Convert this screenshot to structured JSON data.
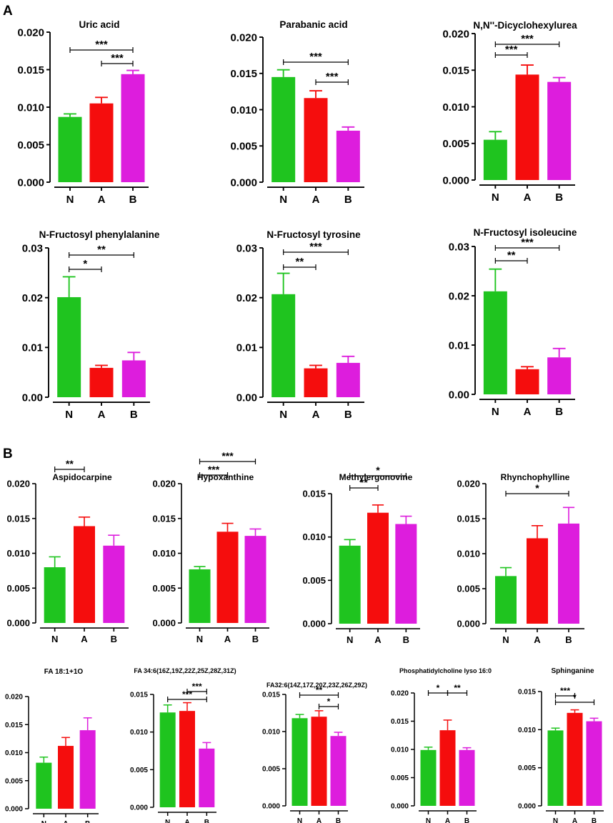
{
  "panels": [
    {
      "label": "A"
    },
    {
      "label": "B"
    }
  ],
  "colors": {
    "N": "#1fc41f",
    "A": "#f50d0d",
    "B": "#dd1ddd",
    "axis": "#000000"
  },
  "chart_data": [
    {
      "panel": "A",
      "type": "bar",
      "title": "Uric acid",
      "categories": [
        "N",
        "A",
        "B"
      ],
      "values": [
        0.0087,
        0.0105,
        0.0144
      ],
      "errors": [
        0.0004,
        0.0008,
        0.0005
      ],
      "ylim": [
        0,
        0.02
      ],
      "yticks": [
        "0.000",
        "0.005",
        "0.010",
        "0.015",
        "0.020"
      ],
      "significance": [
        {
          "from": "N",
          "to": "B",
          "label": "***"
        },
        {
          "from": "A",
          "to": "B",
          "label": "***"
        }
      ]
    },
    {
      "panel": "A",
      "type": "bar",
      "title": "Parabanic acid",
      "categories": [
        "N",
        "A",
        "B"
      ],
      "values": [
        0.0145,
        0.0116,
        0.0071
      ],
      "errors": [
        0.001,
        0.001,
        0.0005
      ],
      "ylim": [
        0,
        0.02
      ],
      "yticks": [
        "0.000",
        "0.005",
        "0.010",
        "0.015",
        "0.020"
      ],
      "significance": [
        {
          "from": "N",
          "to": "B",
          "label": "***"
        },
        {
          "from": "A",
          "to": "B",
          "label": "***"
        }
      ]
    },
    {
      "panel": "A",
      "type": "bar",
      "title": "N,N''-Dicyclohexylurea",
      "categories": [
        "N",
        "A",
        "B"
      ],
      "values": [
        0.0055,
        0.0144,
        0.0134
      ],
      "errors": [
        0.0011,
        0.0013,
        0.0006
      ],
      "ylim": [
        0,
        0.02
      ],
      "yticks": [
        "0.000",
        "0.005",
        "0.010",
        "0.015",
        "0.020"
      ],
      "significance": [
        {
          "from": "N",
          "to": "A",
          "label": "***"
        },
        {
          "from": "N",
          "to": "B",
          "label": "***"
        }
      ]
    },
    {
      "panel": "A",
      "type": "bar",
      "title": "N-Fructosyl phenylalanine",
      "categories": [
        "N",
        "A",
        "B"
      ],
      "values": [
        0.0201,
        0.0059,
        0.0074
      ],
      "errors": [
        0.0041,
        0.0005,
        0.0016
      ],
      "ylim": [
        0,
        0.03
      ],
      "yticks": [
        "0.00",
        "0.01",
        "0.02",
        "0.03"
      ],
      "significance": [
        {
          "from": "N",
          "to": "A",
          "label": "*"
        },
        {
          "from": "N",
          "to": "B",
          "label": "**"
        }
      ]
    },
    {
      "panel": "A",
      "type": "bar",
      "title": "N-Fructosyl tyrosine",
      "categories": [
        "N",
        "A",
        "B"
      ],
      "values": [
        0.0207,
        0.0058,
        0.0069
      ],
      "errors": [
        0.0042,
        0.0006,
        0.0013
      ],
      "ylim": [
        0,
        0.03
      ],
      "yticks": [
        "0.00",
        "0.01",
        "0.02",
        "0.03"
      ],
      "significance": [
        {
          "from": "N",
          "to": "A",
          "label": "**"
        },
        {
          "from": "N",
          "to": "B",
          "label": "***"
        }
      ]
    },
    {
      "panel": "A",
      "type": "bar",
      "title": "N-Fructosyl isoleucine",
      "categories": [
        "N",
        "A",
        "B"
      ],
      "values": [
        0.0209,
        0.0051,
        0.0075
      ],
      "errors": [
        0.0045,
        0.0005,
        0.0018
      ],
      "ylim": [
        0,
        0.03
      ],
      "yticks": [
        "0.00",
        "0.01",
        "0.02",
        "0.03"
      ],
      "significance": [
        {
          "from": "N",
          "to": "A",
          "label": "**"
        },
        {
          "from": "N",
          "to": "B",
          "label": "***"
        }
      ]
    },
    {
      "panel": "B",
      "type": "bar",
      "title": "Aspidocarpine",
      "categories": [
        "N",
        "A",
        "B"
      ],
      "values": [
        0.008,
        0.0139,
        0.0111
      ],
      "errors": [
        0.0015,
        0.0013,
        0.0015
      ],
      "ylim": [
        0,
        0.02
      ],
      "yticks": [
        "0.000",
        "0.005",
        "0.010",
        "0.015",
        "0.020"
      ],
      "significance": [
        {
          "from": "N",
          "to": "A",
          "label": "**"
        }
      ]
    },
    {
      "panel": "B",
      "type": "bar",
      "title": "Hypoxanthine",
      "categories": [
        "N",
        "A",
        "B"
      ],
      "values": [
        0.0077,
        0.0131,
        0.0125
      ],
      "errors": [
        0.0004,
        0.0012,
        0.001
      ],
      "ylim": [
        0,
        0.02
      ],
      "yticks": [
        "0.000",
        "0.005",
        "0.010",
        "0.015",
        "0.020"
      ],
      "significance": [
        {
          "from": "N",
          "to": "A",
          "label": "***"
        },
        {
          "from": "N",
          "to": "B",
          "label": "***"
        }
      ]
    },
    {
      "panel": "B",
      "type": "bar",
      "title": "Methylergonovine",
      "categories": [
        "N",
        "A",
        "B"
      ],
      "values": [
        0.009,
        0.0128,
        0.0115
      ],
      "errors": [
        0.0007,
        0.0009,
        0.0009
      ],
      "ylim": [
        0,
        0.015
      ],
      "yticks": [
        "0.000",
        "0.005",
        "0.010",
        "0.015"
      ],
      "significance": [
        {
          "from": "N",
          "to": "A",
          "label": "**"
        },
        {
          "from": "N",
          "to": "B",
          "label": "*"
        }
      ]
    },
    {
      "panel": "B",
      "type": "bar",
      "title": "Rhynchophylline",
      "categories": [
        "N",
        "A",
        "B"
      ],
      "values": [
        0.0068,
        0.0122,
        0.0143
      ],
      "errors": [
        0.0012,
        0.0018,
        0.0023
      ],
      "ylim": [
        0,
        0.02
      ],
      "yticks": [
        "0.000",
        "0.005",
        "0.010",
        "0.015",
        "0.020"
      ],
      "significance": [
        {
          "from": "N",
          "to": "B",
          "label": "*"
        }
      ]
    },
    {
      "panel": "B",
      "type": "bar",
      "title": "FA 18:1+1O",
      "categories": [
        "N",
        "A",
        "B"
      ],
      "values": [
        0.0082,
        0.0112,
        0.014
      ],
      "errors": [
        0.001,
        0.0015,
        0.0022
      ],
      "ylim": [
        0,
        0.02
      ],
      "yticks": [
        "0.000",
        "0.005",
        "0.010",
        "0.015",
        "0.020"
      ],
      "significance": []
    },
    {
      "panel": "B",
      "type": "bar",
      "title": "FA 34:6(16Z,19Z,22Z,25Z,28Z,31Z)",
      "categories": [
        "N",
        "A",
        "B"
      ],
      "values": [
        0.0126,
        0.0128,
        0.0078
      ],
      "errors": [
        0.001,
        0.0011,
        0.0008
      ],
      "ylim": [
        0,
        0.015
      ],
      "yticks": [
        "0.000",
        "0.005",
        "0.010",
        "0.015"
      ],
      "significance": [
        {
          "from": "N",
          "to": "B",
          "label": "***"
        },
        {
          "from": "A",
          "to": "B",
          "label": "***"
        }
      ]
    },
    {
      "panel": "B",
      "type": "bar",
      "title": "FA32:6(14Z,17Z,20Z,23Z,26Z,29Z)",
      "categories": [
        "N",
        "A",
        "B"
      ],
      "values": [
        0.0118,
        0.012,
        0.0094
      ],
      "errors": [
        0.0005,
        0.0008,
        0.0005
      ],
      "ylim": [
        0,
        0.015
      ],
      "yticks": [
        "0.000",
        "0.005",
        "0.010",
        "0.015"
      ],
      "significance": [
        {
          "from": "N",
          "to": "B",
          "label": "**"
        },
        {
          "from": "A",
          "to": "B",
          "label": "*"
        }
      ]
    },
    {
      "panel": "B",
      "type": "bar",
      "title": "Phosphatidylcholine lyso 16:0",
      "categories": [
        "N",
        "A",
        "B"
      ],
      "values": [
        0.0099,
        0.0134,
        0.0099
      ],
      "errors": [
        0.0005,
        0.0018,
        0.0004
      ],
      "ylim": [
        0,
        0.02
      ],
      "yticks": [
        "0.000",
        "0.005",
        "0.010",
        "0.015",
        "0.020"
      ],
      "significance": [
        {
          "from": "N",
          "to": "A",
          "label": "*"
        },
        {
          "from": "A",
          "to": "B",
          "label": "**"
        }
      ]
    },
    {
      "panel": "B",
      "type": "bar",
      "title": "Sphinganine",
      "categories": [
        "N",
        "A",
        "B"
      ],
      "values": [
        0.0099,
        0.0122,
        0.0111
      ],
      "errors": [
        0.0003,
        0.0004,
        0.0004
      ],
      "ylim": [
        0,
        0.015
      ],
      "yticks": [
        "0.000",
        "0.005",
        "0.010",
        "0.015"
      ],
      "significance": [
        {
          "from": "N",
          "to": "A",
          "label": "***"
        },
        {
          "from": "N",
          "to": "B",
          "label": "*"
        }
      ]
    }
  ]
}
